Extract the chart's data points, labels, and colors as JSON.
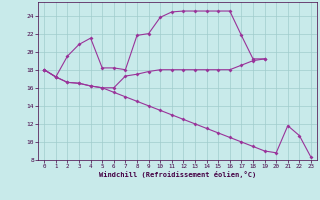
{
  "xlabel": "Windchill (Refroidissement éolien,°C)",
  "bg_color": "#c8eaea",
  "grid_color": "#a0cccc",
  "line_color": "#993399",
  "xlim": [
    -0.5,
    23.5
  ],
  "ylim": [
    8,
    25.5
  ],
  "xticks": [
    0,
    1,
    2,
    3,
    4,
    5,
    6,
    7,
    8,
    9,
    10,
    11,
    12,
    13,
    14,
    15,
    16,
    17,
    18,
    19,
    20,
    21,
    22,
    23
  ],
  "yticks": [
    8,
    10,
    12,
    14,
    16,
    18,
    20,
    22,
    24
  ],
  "line1_x": [
    0,
    1,
    2,
    3,
    4,
    5,
    6,
    7,
    8,
    9,
    10,
    11,
    12,
    13,
    14,
    15,
    16,
    17,
    18,
    19
  ],
  "line1_y": [
    18.0,
    17.2,
    19.5,
    20.8,
    21.5,
    18.2,
    18.2,
    18.0,
    21.8,
    22.0,
    23.8,
    24.4,
    24.5,
    24.5,
    24.5,
    24.5,
    24.5,
    21.8,
    19.2,
    19.2
  ],
  "line2_x": [
    0,
    1,
    2,
    3,
    4,
    5,
    6,
    7,
    8,
    9,
    10,
    11,
    12,
    13,
    14,
    15,
    16,
    17,
    18,
    19
  ],
  "line2_y": [
    18.0,
    17.2,
    16.6,
    16.5,
    16.2,
    16.0,
    16.0,
    17.3,
    17.5,
    17.8,
    18.0,
    18.0,
    18.0,
    18.0,
    18.0,
    18.0,
    18.0,
    18.5,
    19.0,
    19.2
  ],
  "line3_x": [
    0,
    1,
    2,
    3,
    4,
    5,
    6,
    7,
    8,
    9,
    10,
    11,
    12,
    13,
    14,
    15,
    16,
    17,
    18,
    19,
    20,
    21,
    22,
    23
  ],
  "line3_y": [
    18.0,
    17.2,
    16.6,
    16.5,
    16.2,
    16.0,
    15.5,
    15.0,
    14.5,
    14.0,
    13.5,
    13.0,
    12.5,
    12.0,
    11.5,
    11.0,
    10.5,
    10.0,
    9.5,
    9.0,
    8.8,
    11.8,
    10.7,
    8.3
  ]
}
